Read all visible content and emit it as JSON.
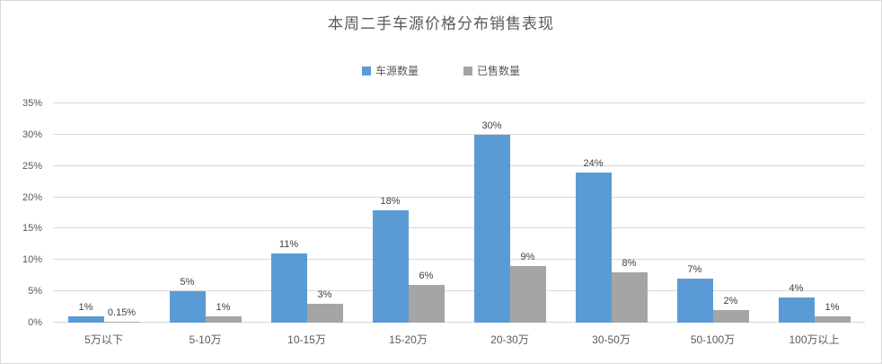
{
  "chart_data": {
    "type": "bar",
    "title": "本周二手车源价格分布销售表现",
    "categories": [
      "5万以下",
      "5-10万",
      "10-15万",
      "15-20万",
      "20-30万",
      "30-50万",
      "50-100万",
      "100万以上"
    ],
    "series": [
      {
        "key": "source",
        "name": "车源数量",
        "color": "#5B9BD5",
        "values": [
          1,
          5,
          11,
          18,
          30,
          24,
          7,
          4
        ],
        "labels": [
          "1%",
          "5%",
          "11%",
          "18%",
          "30%",
          "24%",
          "7%",
          "4%"
        ]
      },
      {
        "key": "sold",
        "name": "已售数量",
        "color": "#A5A5A5",
        "values": [
          0.15,
          1,
          3,
          6,
          9,
          8,
          2,
          1
        ],
        "labels": [
          "0.15%",
          "1%",
          "3%",
          "6%",
          "9%",
          "8%",
          "2%",
          "1%"
        ]
      }
    ],
    "xlabel": "",
    "ylabel": "",
    "ylim": [
      0,
      35
    ],
    "yticks": [
      "0%",
      "5%",
      "10%",
      "15%",
      "20%",
      "25%",
      "30%",
      "35%"
    ],
    "grid": true,
    "legend_position": "top",
    "colors": {
      "gridline": "#D9D9D9",
      "axis_text": "#595959",
      "value_label": "#404040",
      "background": "#FFFFFF",
      "border": "#D9D9D9"
    }
  }
}
